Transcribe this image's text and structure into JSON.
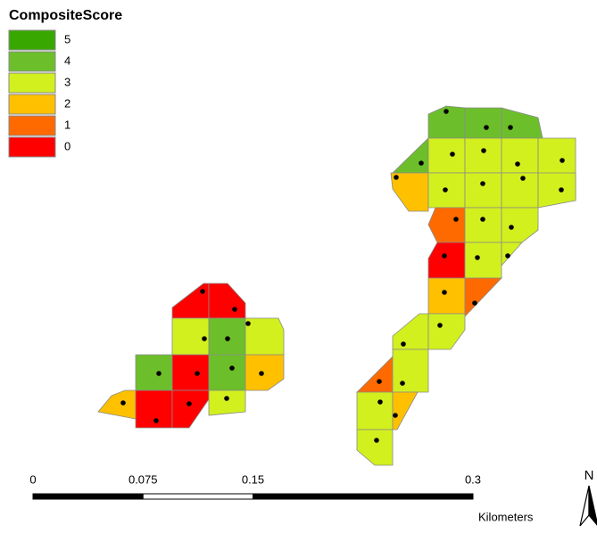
{
  "legend": {
    "title": "CompositeScore",
    "items": [
      {
        "label": 5,
        "color": "#38a800"
      },
      {
        "label": 4,
        "color": "#6cbf2a"
      },
      {
        "label": 3,
        "color": "#d2f01e"
      },
      {
        "label": 2,
        "color": "#ffc000"
      },
      {
        "label": 1,
        "color": "#ff6a00"
      },
      {
        "label": 0,
        "color": "#ff0000"
      }
    ]
  },
  "map": {
    "cells": [
      {
        "score": 4
      },
      {
        "score": 4
      },
      {
        "score": 4
      },
      {
        "score": 4
      },
      {
        "score": 3
      },
      {
        "score": 3
      },
      {
        "score": 3
      },
      {
        "score": 3
      },
      {
        "score": 2
      },
      {
        "score": 3
      },
      {
        "score": 3
      },
      {
        "score": 3
      },
      {
        "score": 3
      },
      {
        "score": 1
      },
      {
        "score": 3
      },
      {
        "score": 3
      },
      {
        "score": 0
      },
      {
        "score": 3
      },
      {
        "score": 3
      },
      {
        "score": 2
      },
      {
        "score": 1
      },
      {
        "score": 3
      },
      {
        "score": 3
      },
      {
        "score": 1
      },
      {
        "score": 3
      },
      {
        "score": 3
      },
      {
        "score": 2
      },
      {
        "score": 3
      },
      {
        "score": 0
      },
      {
        "score": 0
      },
      {
        "score": 3
      },
      {
        "score": 4
      },
      {
        "score": 3
      },
      {
        "score": 4
      },
      {
        "score": 0
      },
      {
        "score": 4
      },
      {
        "score": 2
      },
      {
        "score": 2
      },
      {
        "score": 0
      },
      {
        "score": 0
      },
      {
        "score": 3
      }
    ]
  },
  "scale_bar": {
    "ticks": [
      0,
      0.075,
      0.15,
      0.3
    ],
    "unit": "Kilometers"
  },
  "north_arrow": "N"
}
